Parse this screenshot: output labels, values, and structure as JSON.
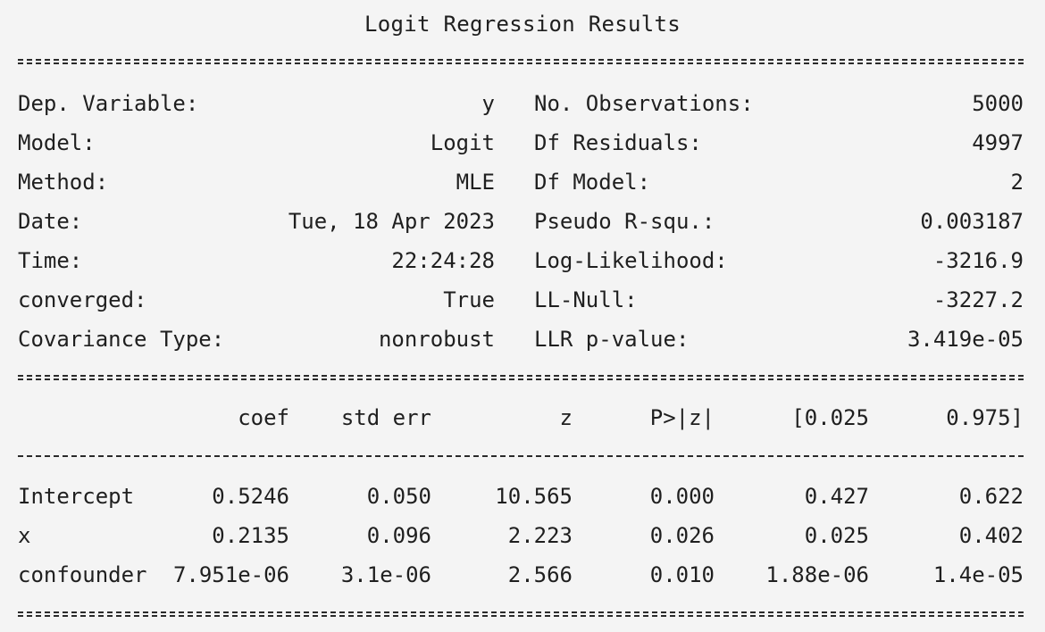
{
  "title": "Logit Regression Results",
  "info_left": [
    {
      "label": "Dep. Variable:",
      "value": "y"
    },
    {
      "label": "Model:",
      "value": "Logit"
    },
    {
      "label": "Method:",
      "value": "MLE"
    },
    {
      "label": "Date:",
      "value": "Tue, 18 Apr 2023"
    },
    {
      "label": "Time:",
      "value": "22:24:28"
    },
    {
      "label": "converged:",
      "value": "True"
    },
    {
      "label": "Covariance Type:",
      "value": "nonrobust"
    }
  ],
  "info_right": [
    {
      "label": "No. Observations:",
      "value": "5000"
    },
    {
      "label": "Df Residuals:",
      "value": "4997"
    },
    {
      "label": "Df Model:",
      "value": "2"
    },
    {
      "label": "Pseudo R-squ.:",
      "value": "0.003187"
    },
    {
      "label": "Log-Likelihood:",
      "value": "-3216.9"
    },
    {
      "label": "LL-Null:",
      "value": "-3227.2"
    },
    {
      "label": "LLR p-value:",
      "value": "3.419e-05"
    }
  ],
  "coef_table": {
    "headers": [
      "coef",
      "std err",
      "z",
      "P>|z|",
      "[0.025",
      "0.975]"
    ],
    "rows": [
      {
        "name": "Intercept",
        "cells": [
          "0.5246",
          "0.050",
          "10.565",
          "0.000",
          "0.427",
          "0.622"
        ]
      },
      {
        "name": "x",
        "cells": [
          "0.2135",
          "0.096",
          "2.223",
          "0.026",
          "0.025",
          "0.402"
        ]
      },
      {
        "name": "confounder",
        "cells": [
          "7.951e-06",
          "3.1e-06",
          "2.566",
          "0.010",
          "1.88e-06",
          "1.4e-05"
        ]
      }
    ]
  }
}
